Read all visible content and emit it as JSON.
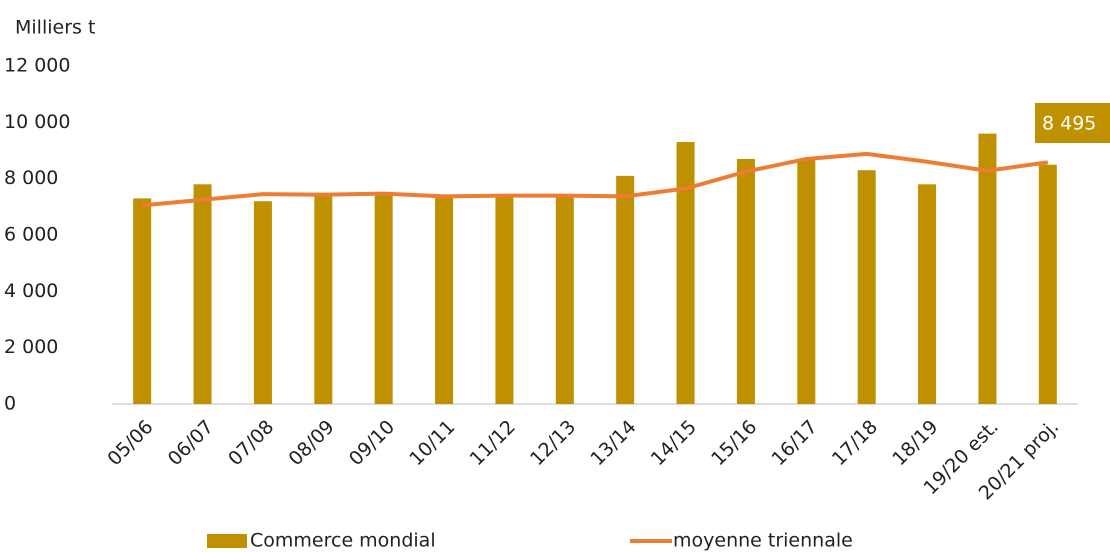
{
  "chart_data": {
    "type": "bar_line",
    "y_label": "Milliers t",
    "categories": [
      "05/06",
      "06/07",
      "07/08",
      "08/09",
      "09/10",
      "10/11",
      "11/12",
      "12/13",
      "13/14",
      "14/15",
      "15/16",
      "16/17",
      "17/18",
      "18/19",
      "19/20 est.",
      "20/21 proj."
    ],
    "series": [
      {
        "name": "Commerce mondial",
        "type": "bar",
        "color": "#bf9000",
        "values": [
          7300,
          7800,
          7200,
          7500,
          7500,
          7400,
          7400,
          7400,
          8100,
          9300,
          8700,
          8700,
          8300,
          7800,
          9600,
          8495
        ],
        "value_labels": [
          null,
          null,
          null,
          null,
          null,
          null,
          null,
          null,
          null,
          null,
          null,
          null,
          null,
          null,
          null,
          "8 495"
        ]
      },
      {
        "name": "moyenne triennale",
        "type": "line",
        "color": "#ed7d31",
        "values": [
          7050,
          7250,
          7450,
          7430,
          7470,
          7370,
          7400,
          7400,
          7370,
          7650,
          8250,
          8700,
          8880,
          8600,
          8280,
          8580
        ]
      }
    ],
    "ylim": [
      0,
      12000
    ],
    "yticks": [
      0,
      {
        "value": 2000,
        "label": "2 000"
      },
      {
        "value": 4000,
        "label": "4 000"
      },
      {
        "value": 6000,
        "label": "6 000"
      },
      {
        "value": 8000,
        "label": "8 000"
      },
      {
        "value": 10000,
        "label": "10 000"
      },
      {
        "value": 12000,
        "label": "12 000"
      }
    ],
    "grid": false
  }
}
